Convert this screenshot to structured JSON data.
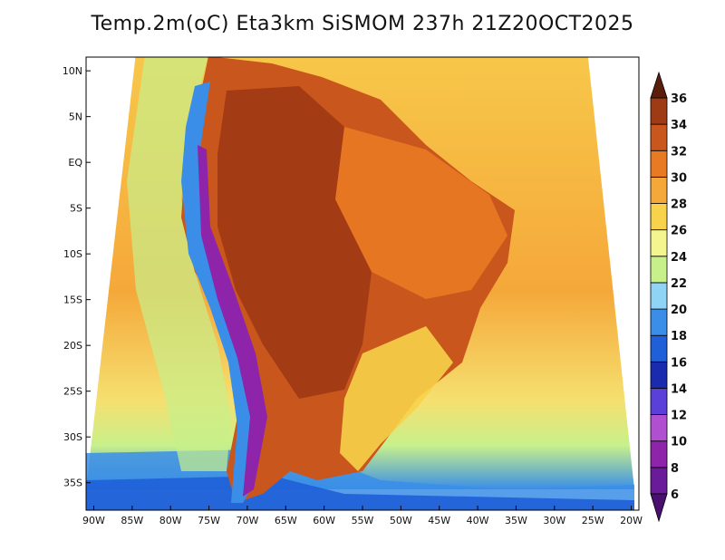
{
  "title": "Temp.2m(oC) Eta3km SiSMOM 237h 21Z20OCT2025",
  "map": {
    "variable": "2m temperature",
    "units": "oC",
    "lat_range": [
      -38,
      11.5
    ],
    "lon_range": [
      -91,
      -19
    ],
    "lat_ticks": [
      {
        "value": 10,
        "label": "10N"
      },
      {
        "value": 5,
        "label": "5N"
      },
      {
        "value": 0,
        "label": "EQ"
      },
      {
        "value": -5,
        "label": "5S"
      },
      {
        "value": -10,
        "label": "10S"
      },
      {
        "value": -15,
        "label": "15S"
      },
      {
        "value": -20,
        "label": "20S"
      },
      {
        "value": -25,
        "label": "25S"
      },
      {
        "value": -30,
        "label": "30S"
      },
      {
        "value": -35,
        "label": "35S"
      }
    ],
    "lon_ticks": [
      {
        "value": -90,
        "label": "90W"
      },
      {
        "value": -85,
        "label": "85W"
      },
      {
        "value": -80,
        "label": "80W"
      },
      {
        "value": -75,
        "label": "75W"
      },
      {
        "value": -70,
        "label": "70W"
      },
      {
        "value": -65,
        "label": "65W"
      },
      {
        "value": -60,
        "label": "60W"
      },
      {
        "value": -55,
        "label": "55W"
      },
      {
        "value": -50,
        "label": "50W"
      },
      {
        "value": -45,
        "label": "45W"
      },
      {
        "value": -40,
        "label": "40W"
      },
      {
        "value": -35,
        "label": "35W"
      },
      {
        "value": -30,
        "label": "30W"
      },
      {
        "value": -25,
        "label": "25W"
      },
      {
        "value": -20,
        "label": "20W"
      }
    ]
  },
  "colorbar": {
    "levels": [
      {
        "value": 6,
        "label": "6",
        "color": "#6a1b9a"
      },
      {
        "value": 8,
        "label": "8",
        "color": "#8e24aa"
      },
      {
        "value": 10,
        "label": "10",
        "color": "#b04fd0"
      },
      {
        "value": 12,
        "label": "12",
        "color": "#5a3fd8"
      },
      {
        "value": 14,
        "label": "14",
        "color": "#1a2bb0"
      },
      {
        "value": 16,
        "label": "16",
        "color": "#1f5fd8"
      },
      {
        "value": 18,
        "label": "18",
        "color": "#3a8ee8"
      },
      {
        "value": 20,
        "label": "20",
        "color": "#8fd3f5"
      },
      {
        "value": 22,
        "label": "22",
        "color": "#c8f08a"
      },
      {
        "value": 24,
        "label": "24",
        "color": "#f5f590"
      },
      {
        "value": 26,
        "label": "26",
        "color": "#f7d24a"
      },
      {
        "value": 28,
        "label": "28",
        "color": "#f5a83a"
      },
      {
        "value": 30,
        "label": "30",
        "color": "#e97a24"
      },
      {
        "value": 32,
        "label": "32",
        "color": "#c9561c"
      },
      {
        "value": 34,
        "label": "34",
        "color": "#9e3a14"
      },
      {
        "value": 36,
        "label": "36",
        "color": "#6b2410"
      }
    ],
    "below_color": "#4a1070",
    "above_color": "#5a1e0c"
  }
}
